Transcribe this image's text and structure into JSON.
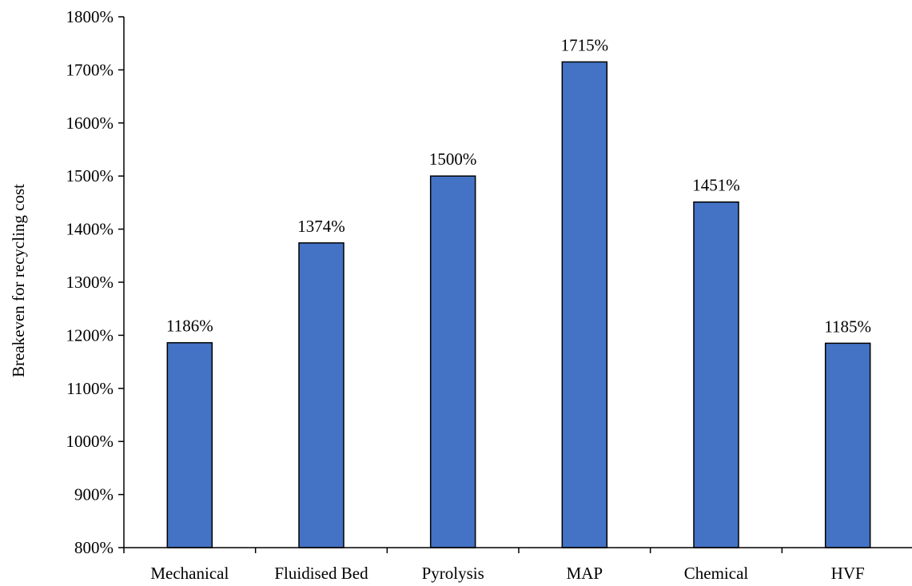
{
  "chart_data": {
    "type": "bar",
    "title": "",
    "xlabel": "",
    "ylabel": "Breakeven for recycling cost",
    "categories": [
      "Mechanical",
      "Fluidised Bed",
      "Pyrolysis",
      "MAP",
      "Chemical",
      "HVF"
    ],
    "values": [
      1186,
      1374,
      1500,
      1715,
      1451,
      1185
    ],
    "data_labels": [
      "1186%",
      "1374%",
      "1500%",
      "1715%",
      "1451%",
      "1185%"
    ],
    "ylim": [
      800,
      1800
    ],
    "yticks": [
      800,
      900,
      1000,
      1100,
      1200,
      1300,
      1400,
      1500,
      1600,
      1700,
      1800
    ],
    "ytick_labels": [
      "800%",
      "900%",
      "1000%",
      "1100%",
      "1200%",
      "1300%",
      "1400%",
      "1500%",
      "1600%",
      "1700%",
      "1800%"
    ],
    "grid": false,
    "legend": "none",
    "colors": {
      "bar": "#4472C4",
      "bar_edge": "#000000",
      "axis": "#000000"
    }
  }
}
